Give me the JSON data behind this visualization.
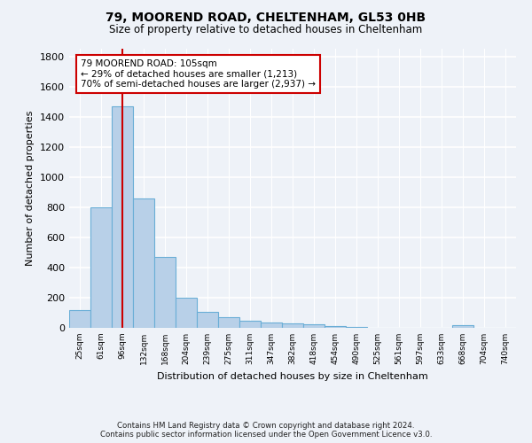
{
  "title": "79, MOOREND ROAD, CHELTENHAM, GL53 0HB",
  "subtitle": "Size of property relative to detached houses in Cheltenham",
  "xlabel": "Distribution of detached houses by size in Cheltenham",
  "ylabel": "Number of detached properties",
  "categories": [
    "25sqm",
    "61sqm",
    "96sqm",
    "132sqm",
    "168sqm",
    "204sqm",
    "239sqm",
    "275sqm",
    "311sqm",
    "347sqm",
    "382sqm",
    "418sqm",
    "454sqm",
    "490sqm",
    "525sqm",
    "561sqm",
    "597sqm",
    "633sqm",
    "668sqm",
    "704sqm",
    "740sqm"
  ],
  "values": [
    120,
    800,
    1470,
    860,
    470,
    200,
    105,
    70,
    45,
    35,
    28,
    25,
    10,
    3,
    2,
    1,
    1,
    1,
    18,
    1,
    1
  ],
  "bar_color": "#b8d0e8",
  "bar_edge_color": "#6aaed6",
  "bar_linewidth": 0.8,
  "vline_x": 2,
  "vline_color": "#cc0000",
  "vline_linewidth": 1.5,
  "annotation_text": "79 MOOREND ROAD: 105sqm\n← 29% of detached houses are smaller (1,213)\n70% of semi-detached houses are larger (2,937) →",
  "annotation_box_color": "white",
  "annotation_box_edge": "#cc0000",
  "ylim": [
    0,
    1850
  ],
  "yticks": [
    0,
    200,
    400,
    600,
    800,
    1000,
    1200,
    1400,
    1600,
    1800
  ],
  "background_color": "#eef2f8",
  "grid_color": "white",
  "footer": "Contains HM Land Registry data © Crown copyright and database right 2024.\nContains public sector information licensed under the Open Government Licence v3.0."
}
